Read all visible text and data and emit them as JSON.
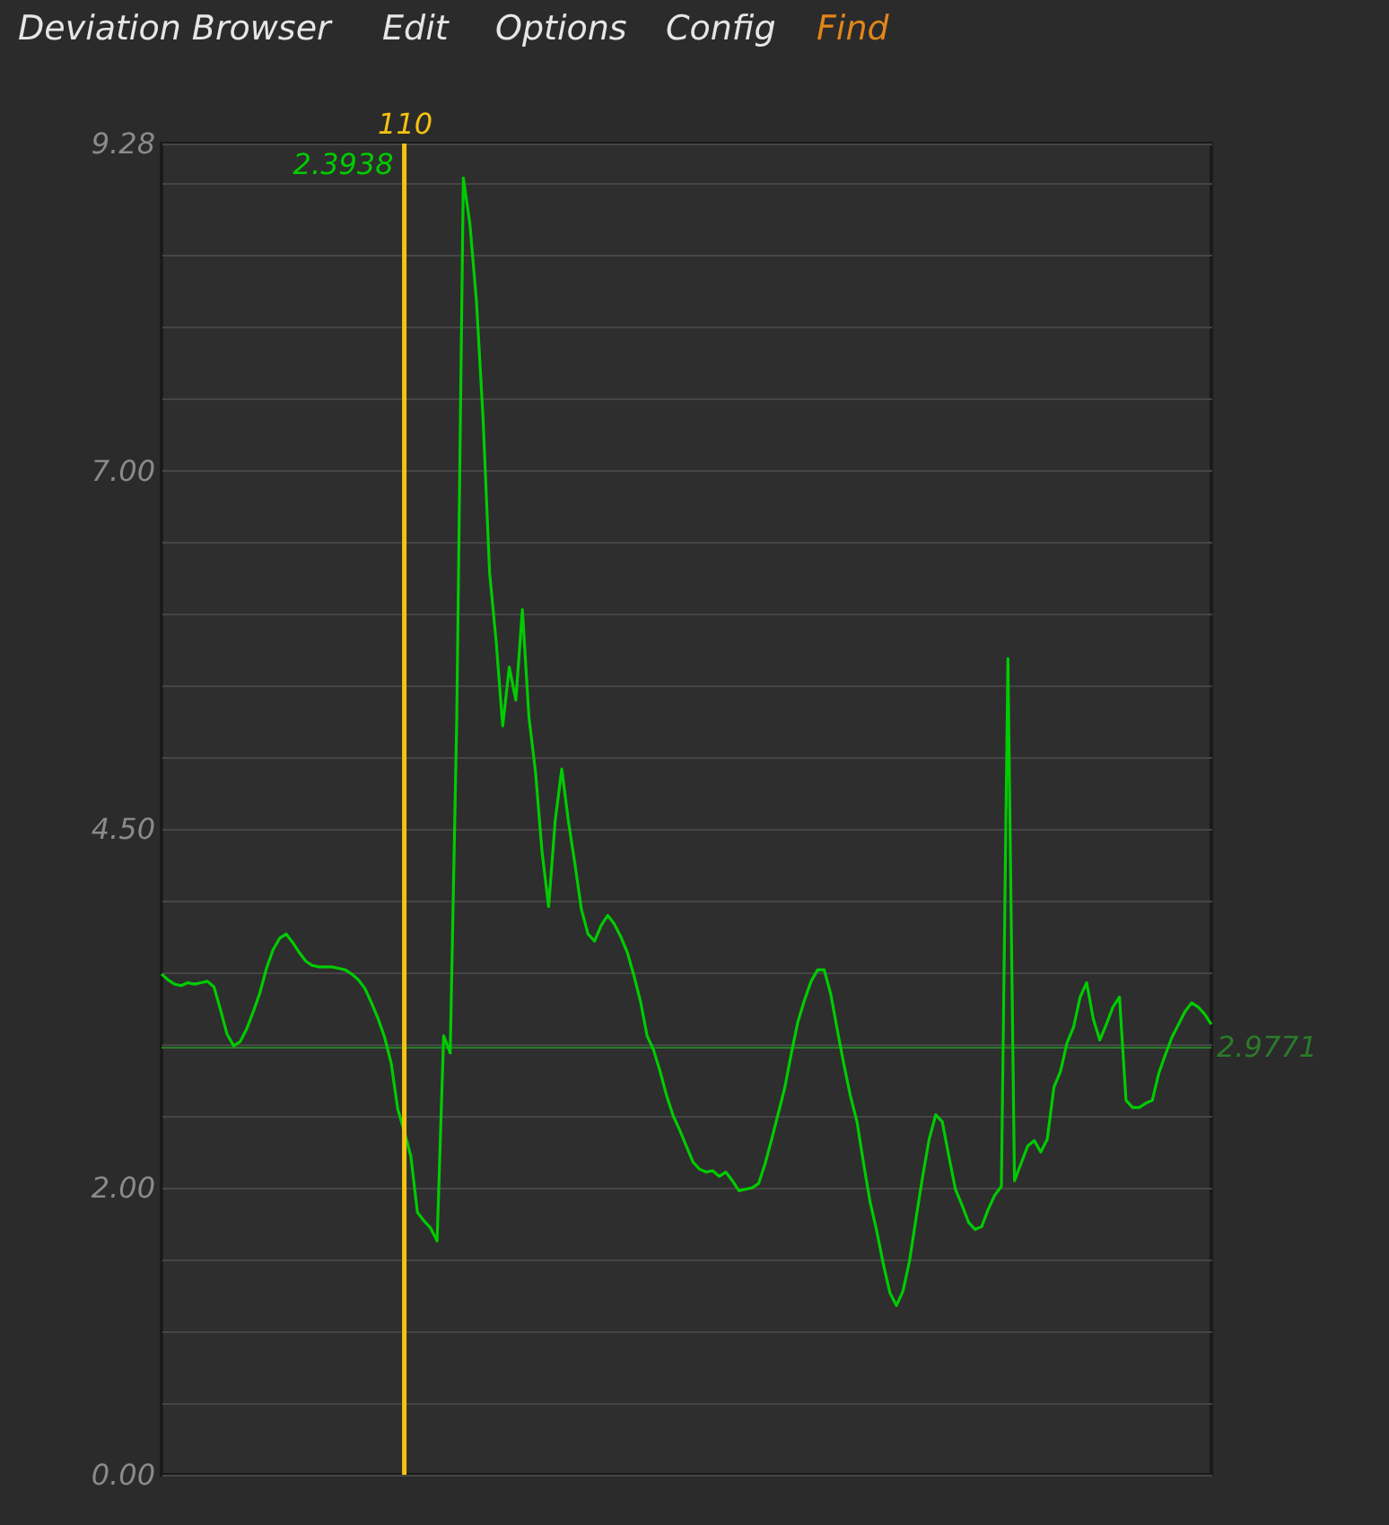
{
  "chart_data": {
    "type": "line",
    "categories": [
      null,
      null,
      null,
      null,
      null,
      null,
      null,
      null,
      null,
      null,
      null,
      null,
      null,
      null,
      null,
      null,
      null,
      null,
      null,
      null,
      null,
      null,
      null,
      null,
      null,
      null,
      null,
      null,
      null,
      null,
      null,
      null,
      null,
      null,
      null,
      null,
      null,
      "110",
      null,
      null,
      null,
      null,
      null,
      null,
      null,
      null,
      null,
      null,
      null,
      null,
      null,
      null,
      null,
      null,
      null,
      null,
      null,
      null,
      null,
      null,
      null,
      null,
      null,
      null,
      null,
      null,
      null,
      null,
      null,
      null,
      null,
      null,
      null,
      null,
      null,
      null,
      null,
      null,
      null,
      null,
      null,
      null,
      null,
      null,
      null,
      null,
      null,
      null,
      null,
      null,
      null,
      null,
      null,
      null,
      null,
      null,
      null,
      null,
      null,
      null,
      null,
      null,
      null,
      null,
      null,
      null,
      null,
      null,
      null,
      null,
      null,
      null,
      null,
      null,
      null,
      null,
      null,
      null,
      null,
      null,
      null,
      null,
      null,
      null,
      null,
      null,
      null,
      null,
      null,
      null,
      null,
      null,
      null,
      null,
      null,
      null,
      null,
      null,
      null,
      null,
      null,
      null,
      null,
      null,
      null,
      null,
      null,
      null,
      null,
      null,
      null,
      null,
      null,
      null,
      null,
      null,
      null,
      null,
      null,
      null,
      null
    ],
    "series": [
      {
        "color": "#00cc00",
        "values": [
          3.49,
          3.45,
          3.42,
          3.41,
          3.43,
          3.42,
          3.43,
          3.44,
          3.4,
          3.24,
          3.07,
          2.99,
          3.02,
          3.11,
          3.23,
          3.36,
          3.53,
          3.66,
          3.74,
          3.77,
          3.71,
          3.64,
          3.58,
          3.55,
          3.54,
          3.54,
          3.54,
          3.53,
          3.52,
          3.49,
          3.45,
          3.39,
          3.29,
          3.18,
          3.05,
          2.87,
          2.55,
          2.3938,
          2.22,
          1.83,
          1.77,
          1.72,
          1.63,
          3.06,
          2.94,
          5.28,
          9.04,
          8.72,
          8.18,
          7.37,
          6.29,
          5.81,
          5.22,
          5.63,
          5.4,
          6.03,
          5.28,
          4.9,
          4.34,
          3.96,
          4.56,
          4.92,
          4.56,
          4.26,
          3.94,
          3.77,
          3.72,
          3.83,
          3.9,
          3.84,
          3.75,
          3.64,
          3.48,
          3.3,
          3.06,
          2.96,
          2.81,
          2.64,
          2.5,
          2.4,
          2.29,
          2.18,
          2.13,
          2.11,
          2.12,
          2.08,
          2.11,
          2.05,
          1.98,
          1.99,
          2.0,
          2.03,
          2.17,
          2.34,
          2.52,
          2.7,
          2.94,
          3.16,
          3.31,
          3.44,
          3.52,
          3.52,
          3.35,
          3.1,
          2.86,
          2.64,
          2.46,
          2.17,
          1.9,
          1.7,
          1.47,
          1.27,
          1.18,
          1.28,
          1.49,
          1.79,
          2.08,
          2.34,
          2.51,
          2.46,
          2.22,
          1.99,
          1.88,
          1.76,
          1.71,
          1.73,
          1.85,
          1.95,
          2.01,
          5.69,
          2.05,
          2.17,
          2.29,
          2.33,
          2.25,
          2.34,
          2.7,
          2.81,
          3.01,
          3.12,
          3.33,
          3.43,
          3.18,
          3.03,
          3.14,
          3.26,
          3.33,
          2.61,
          2.56,
          2.56,
          2.59,
          2.61,
          2.8,
          2.93,
          3.05,
          3.14,
          3.23,
          3.29,
          3.26,
          3.21,
          3.14
        ]
      }
    ],
    "ylim": [
      0,
      9.28
    ],
    "yticks": [
      {
        "value": 0,
        "label": "0.00"
      },
      {
        "value": 0.5,
        "label": null
      },
      {
        "value": 1,
        "label": null
      },
      {
        "value": 1.5,
        "label": null
      },
      {
        "value": 2,
        "label": "2.00"
      },
      {
        "value": 2.5,
        "label": null
      },
      {
        "value": 3,
        "label": null
      },
      {
        "value": 3.5,
        "label": null
      },
      {
        "value": 4,
        "label": null
      },
      {
        "value": 4.5,
        "label": "4.50"
      },
      {
        "value": 5,
        "label": null
      },
      {
        "value": 5.5,
        "label": null
      },
      {
        "value": 6,
        "label": null
      },
      {
        "value": 6.5,
        "label": null
      },
      {
        "value": 7,
        "label": "7.00"
      },
      {
        "value": 7.5,
        "label": null
      },
      {
        "value": 8,
        "label": null
      },
      {
        "value": 8.5,
        "label": null
      },
      {
        "value": 9,
        "label": null
      },
      {
        "value": 9.28,
        "label": "9.28"
      }
    ],
    "grid": "y",
    "ref_lines": [
      {
        "axis": "x",
        "value": "110",
        "color": "#f5c211"
      },
      {
        "axis": "y",
        "value": 2.9771,
        "label": "2.9771",
        "color": "#2a7a2a"
      }
    ],
    "annotations": [
      "2.3938",
      "Deviation Browser",
      "Edit",
      "Options",
      "Config",
      "Find"
    ]
  }
}
